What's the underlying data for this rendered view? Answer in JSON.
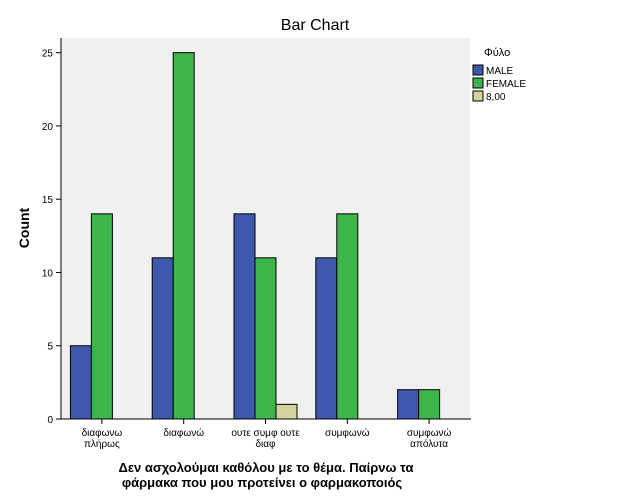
{
  "chart_data": {
    "type": "bar",
    "title": "Bar Chart",
    "xlabel": [
      "Δεν ασχολούμαι καθόλου με το θέμα. Παίρνω τα",
      "φάρμακα που μου προτείνει ο φαρμακοποιός"
    ],
    "ylabel": "Count",
    "ylim": [
      0,
      26
    ],
    "yticks": [
      0,
      5,
      10,
      15,
      20,
      25
    ],
    "grid": false,
    "legend_title": "Φύλο",
    "legend_position": "right",
    "categories": [
      [
        "διαφωνω",
        "πλήρως"
      ],
      [
        "διαφωνώ"
      ],
      [
        "ουτε συμφ ουτε",
        "διαφ"
      ],
      [
        "συμφωνώ"
      ],
      [
        "συμφωνώ",
        "απόλυτα"
      ]
    ],
    "series": [
      {
        "name": "MALE",
        "color": "#3e58ac",
        "values": [
          5,
          11,
          14,
          11,
          2
        ]
      },
      {
        "name": "FEMALE",
        "color": "#3cb54a",
        "values": [
          14,
          25,
          11,
          14,
          2
        ]
      },
      {
        "name": "8,00",
        "color": "#d6d2a0",
        "values": [
          0,
          0,
          1,
          0,
          0
        ]
      }
    ],
    "plot_background": "#f0f0f0"
  }
}
